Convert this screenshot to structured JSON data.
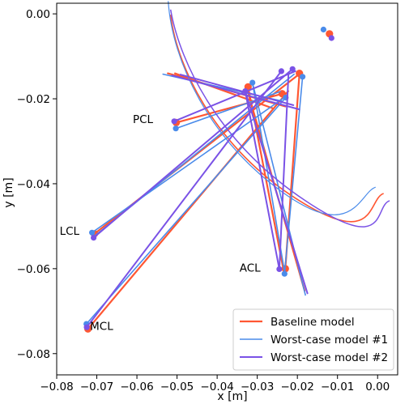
{
  "chart_data": {
    "type": "line",
    "xlabel": "x [m]",
    "ylabel": "y [m]",
    "xlim": [
      -0.08,
      0.005
    ],
    "ylim": [
      -0.085,
      0.0025
    ],
    "xticks": [
      -0.08,
      -0.07,
      -0.06,
      -0.05,
      -0.04,
      -0.03,
      -0.02,
      -0.01,
      0.0
    ],
    "yticks": [
      0.0,
      -0.02,
      -0.04,
      -0.06,
      -0.08
    ],
    "xtick_labels": [
      "−0.08",
      "−0.07",
      "−0.06",
      "−0.05",
      "−0.04",
      "−0.03",
      "−0.02",
      "−0.01",
      "0.00"
    ],
    "ytick_labels": [
      "0.00",
      "−0.02",
      "−0.04",
      "−0.06",
      "−0.08"
    ],
    "grid": false,
    "legend_position": "lower-right",
    "annotations": [
      {
        "text": "PCL",
        "x": -0.0585,
        "y": -0.0248
      },
      {
        "text": "LCL",
        "x": -0.0768,
        "y": -0.0511
      },
      {
        "text": "ACL",
        "x": -0.0318,
        "y": -0.0597
      },
      {
        "text": "MCL",
        "x": -0.0688,
        "y": -0.0735
      }
    ],
    "series": [
      {
        "name": "Baseline model",
        "color": "#ff5733",
        "width": 2.2,
        "segments": [
          [
            [
              -0.0722,
              -0.0742
            ],
            [
              -0.0223,
              -0.0182
            ]
          ],
          [
            [
              -0.0706,
              -0.0518
            ],
            [
              -0.0193,
              -0.014
            ]
          ],
          [
            [
              -0.0502,
              -0.0256
            ],
            [
              -0.0237,
              -0.0188
            ]
          ],
          [
            [
              -0.0323,
              -0.0172
            ],
            [
              -0.0235,
              -0.06
            ]
          ],
          [
            [
              -0.0327,
              -0.0172
            ],
            [
              -0.0182,
              -0.0652
            ]
          ],
          [
            [
              -0.023,
              -0.06
            ],
            [
              -0.0195,
              -0.0142
            ]
          ],
          [
            [
              -0.0523,
              -0.014
            ],
            [
              -0.023,
              -0.0218
            ]
          ],
          [
            [
              -0.0505,
              -0.014
            ],
            [
              -0.0262,
              -0.0222
            ]
          ]
        ],
        "curve": [
          [
            -0.0516,
            -0.0002
          ],
          [
            -0.05,
            -0.0131
          ],
          [
            -0.04,
            -0.0317
          ],
          [
            -0.02,
            -0.0437
          ],
          [
            0.0015,
            -0.0423
          ]
        ],
        "points": [
          [
            -0.0722,
            -0.0742
          ],
          [
            -0.0706,
            -0.0518
          ],
          [
            -0.0502,
            -0.0256
          ],
          [
            -0.0323,
            -0.0172
          ],
          [
            -0.023,
            -0.06
          ],
          [
            -0.0238,
            -0.0188
          ],
          [
            -0.0195,
            -0.014
          ],
          [
            -0.012,
            -0.0047
          ]
        ]
      },
      {
        "name": "Worst-case model #1",
        "color": "#4a8bea",
        "width": 1.6,
        "segments": [
          [
            [
              -0.0726,
              -0.073
            ],
            [
              -0.0229,
              -0.0197
            ]
          ],
          [
            [
              -0.0712,
              -0.0515
            ],
            [
              -0.0231,
              -0.0196
            ]
          ],
          [
            [
              -0.0707,
              -0.0524
            ],
            [
              -0.0208,
              -0.0142
            ]
          ],
          [
            [
              -0.0503,
              -0.027
            ],
            [
              -0.0243,
              -0.0183
            ]
          ],
          [
            [
              -0.0312,
              -0.0162
            ],
            [
              -0.0231,
              -0.0612
            ]
          ],
          [
            [
              -0.0312,
              -0.0162
            ],
            [
              -0.018,
              -0.0662
            ]
          ],
          [
            [
              -0.0232,
              -0.0612
            ],
            [
              -0.0187,
              -0.0148
            ]
          ],
          [
            [
              -0.0535,
              -0.0142
            ],
            [
              -0.024,
              -0.0205
            ]
          ]
        ],
        "curve": [
          [
            -0.0522,
            0.003
          ],
          [
            -0.0512,
            -0.0112
          ],
          [
            -0.042,
            -0.0294
          ],
          [
            -0.024,
            -0.0418
          ],
          [
            -0.0005,
            -0.0408
          ]
        ],
        "points": [
          [
            -0.0726,
            -0.073
          ],
          [
            -0.0712,
            -0.0515
          ],
          [
            -0.0503,
            -0.027
          ],
          [
            -0.0312,
            -0.0162
          ],
          [
            -0.0232,
            -0.0612
          ],
          [
            -0.0229,
            -0.0197
          ],
          [
            -0.0187,
            -0.0148
          ],
          [
            -0.0135,
            -0.0037
          ]
        ]
      },
      {
        "name": "Worst-case model #2",
        "color": "#7a52e6",
        "width": 2.0,
        "segments": [
          [
            [
              -0.0725,
              -0.0738
            ],
            [
              -0.024,
              -0.0135
            ]
          ],
          [
            [
              -0.0708,
              -0.0527
            ],
            [
              -0.0212,
              -0.013
            ]
          ],
          [
            [
              -0.0507,
              -0.0253
            ],
            [
              -0.0205,
              -0.0135
            ]
          ],
          [
            [
              -0.033,
              -0.0182
            ],
            [
              -0.0245,
              -0.0601
            ]
          ],
          [
            [
              -0.033,
              -0.0182
            ],
            [
              -0.0175,
              -0.0658
            ]
          ],
          [
            [
              -0.0245,
              -0.0601
            ],
            [
              -0.0222,
              -0.0138
            ]
          ],
          [
            [
              -0.0512,
              -0.0145
            ],
            [
              -0.0195,
              -0.0225
            ]
          ],
          [
            [
              -0.0492,
              -0.0143
            ],
            [
              -0.021,
              -0.0215
            ]
          ]
        ],
        "curve": [
          [
            -0.0516,
            0.001
          ],
          [
            -0.0492,
            -0.0121
          ],
          [
            -0.039,
            -0.0308
          ],
          [
            -0.018,
            -0.044
          ],
          [
            0.003,
            -0.044
          ]
        ],
        "points": [
          [
            -0.0725,
            -0.0738
          ],
          [
            -0.0708,
            -0.0527
          ],
          [
            -0.0507,
            -0.0253
          ],
          [
            -0.033,
            -0.0182
          ],
          [
            -0.0245,
            -0.0601
          ],
          [
            -0.024,
            -0.0135
          ],
          [
            -0.0212,
            -0.013
          ],
          [
            -0.0115,
            -0.0057
          ]
        ]
      }
    ]
  }
}
